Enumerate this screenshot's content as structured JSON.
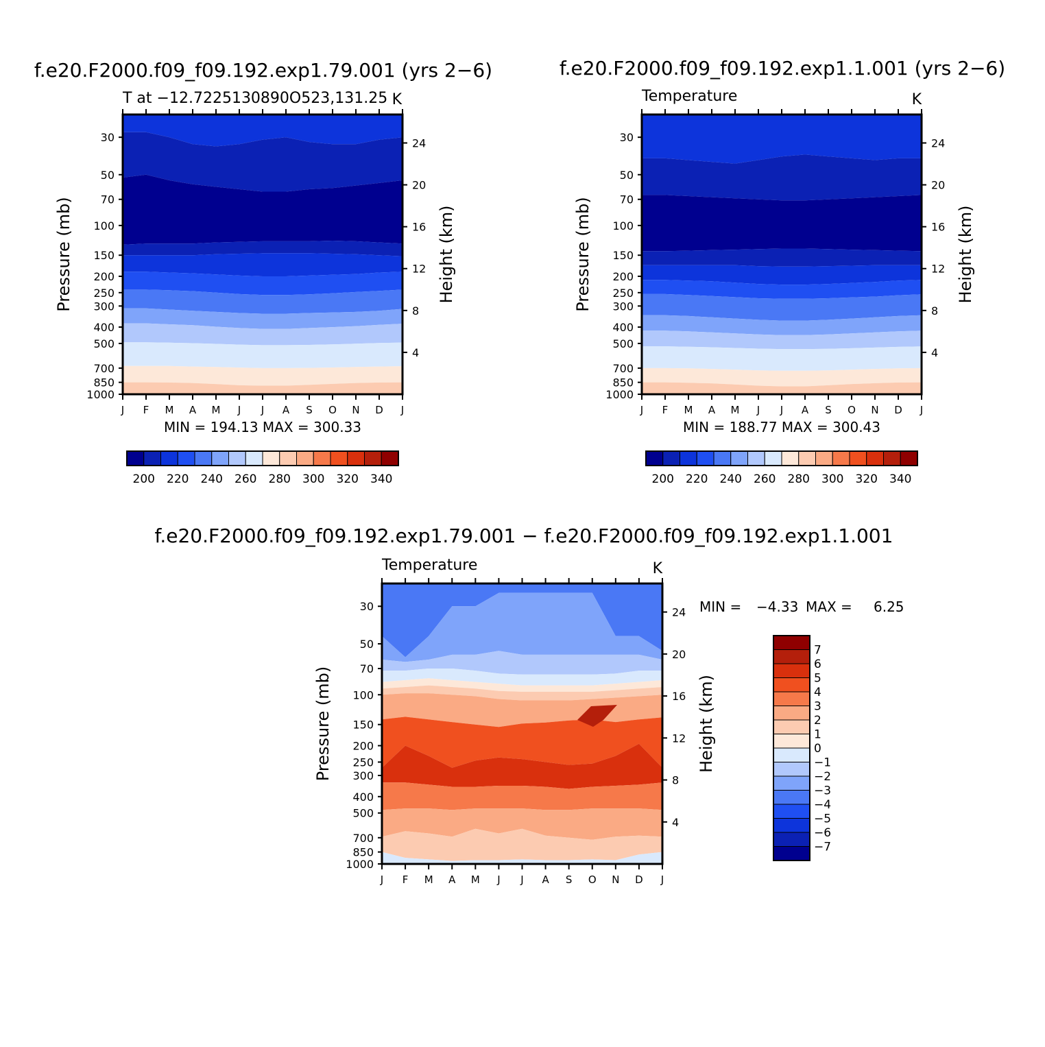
{
  "months": [
    "J",
    "F",
    "M",
    "A",
    "M",
    "J",
    "J",
    "A",
    "S",
    "O",
    "N",
    "D",
    "J"
  ],
  "pressure_ticks": [
    30,
    50,
    70,
    100,
    150,
    200,
    250,
    300,
    400,
    500,
    700,
    850,
    1000
  ],
  "height_ticks": [
    4,
    8,
    12,
    16,
    20,
    24
  ],
  "pressure_label": "Pressure  (mb)",
  "height_label": "Height  (km)",
  "colors": {
    "abs_palette": [
      "#00008f",
      "#0b21b4",
      "#0d34db",
      "#1f4ff2",
      "#4a78f5",
      "#7fa4fa",
      "#b1c8fc",
      "#d9e9fd",
      "#fde8d9",
      "#fccbb1",
      "#faaa84",
      "#f6794a",
      "#f0501f",
      "#d9300d",
      "#b41f0b",
      "#8f0000"
    ],
    "diff_palette": [
      "#00008f",
      "#0b21b4",
      "#0d34db",
      "#1f4ff2",
      "#4a78f5",
      "#7fa4fa",
      "#b1c8fc",
      "#d9e9fd",
      "#fde8d9",
      "#fccbb1",
      "#faaa84",
      "#f6794a",
      "#f0501f",
      "#d9300d",
      "#b41f0b",
      "#8f0000"
    ]
  },
  "chart_data": [
    {
      "type": "heatmap",
      "title": "f.e20.F2000.f09_f09.192.exp1.79.001 (yrs 2−6)",
      "subtitle_left": "T at −12.7225130890O523,131.25",
      "subtitle_right": "K",
      "stats": "MIN =  194.13  MAX =  300.33",
      "xlabel": "",
      "ylabel": "Pressure  (mb)",
      "y2label": "Height  (km)",
      "levels_km": [
        0,
        1.4,
        2.9,
        5.5,
        7.3,
        9.0,
        10.6,
        11.7,
        12.9,
        14.2,
        16.2,
        20.0,
        24.5,
        26.0
      ],
      "contour_levels": [
        200,
        220,
        240,
        260,
        280,
        300,
        320,
        340
      ],
      "colorbar_labels": [
        "200",
        "220",
        "240",
        "260",
        "280",
        "300",
        "320",
        "340"
      ],
      "colorbar_range": [
        190,
        350
      ]
    },
    {
      "type": "heatmap",
      "title": "f.e20.F2000.f09_f09.192.exp1.1.001 (yrs 2−6)",
      "subtitle_left": "Temperature",
      "subtitle_right": "K",
      "stats": "MIN =  188.77  MAX =  300.43",
      "xlabel": "",
      "ylabel": "Pressure  (mb)",
      "y2label": "Height  (km)",
      "contour_levels": [
        200,
        220,
        240,
        260,
        280,
        300,
        320,
        340
      ],
      "colorbar_labels": [
        "200",
        "220",
        "240",
        "260",
        "280",
        "300",
        "320",
        "340"
      ],
      "colorbar_range": [
        190,
        350
      ]
    },
    {
      "type": "heatmap",
      "title": "f.e20.F2000.f09_f09.192.exp1.79.001  −  f.e20.F2000.f09_f09.192.exp1.1.001",
      "subtitle_left": "Temperature",
      "subtitle_right": "K",
      "stats_min_label": "MIN =",
      "stats_min": "−4.33",
      "stats_max_label": "MAX =",
      "stats_max": "6.25",
      "xlabel": "",
      "ylabel": "Pressure  (mb)",
      "y2label": "Height  (km)",
      "contour_levels": [
        -7,
        -6,
        -5,
        -4,
        -3,
        -2,
        -1,
        0,
        1,
        2,
        3,
        4,
        5,
        6,
        7
      ],
      "colorbar_labels": [
        "7",
        "6",
        "5",
        "4",
        "3",
        "2",
        "1",
        "0",
        "−1",
        "−2",
        "−3",
        "−4",
        "−5",
        "−6",
        "−7"
      ],
      "colorbar_range": [
        -8,
        8
      ]
    }
  ]
}
